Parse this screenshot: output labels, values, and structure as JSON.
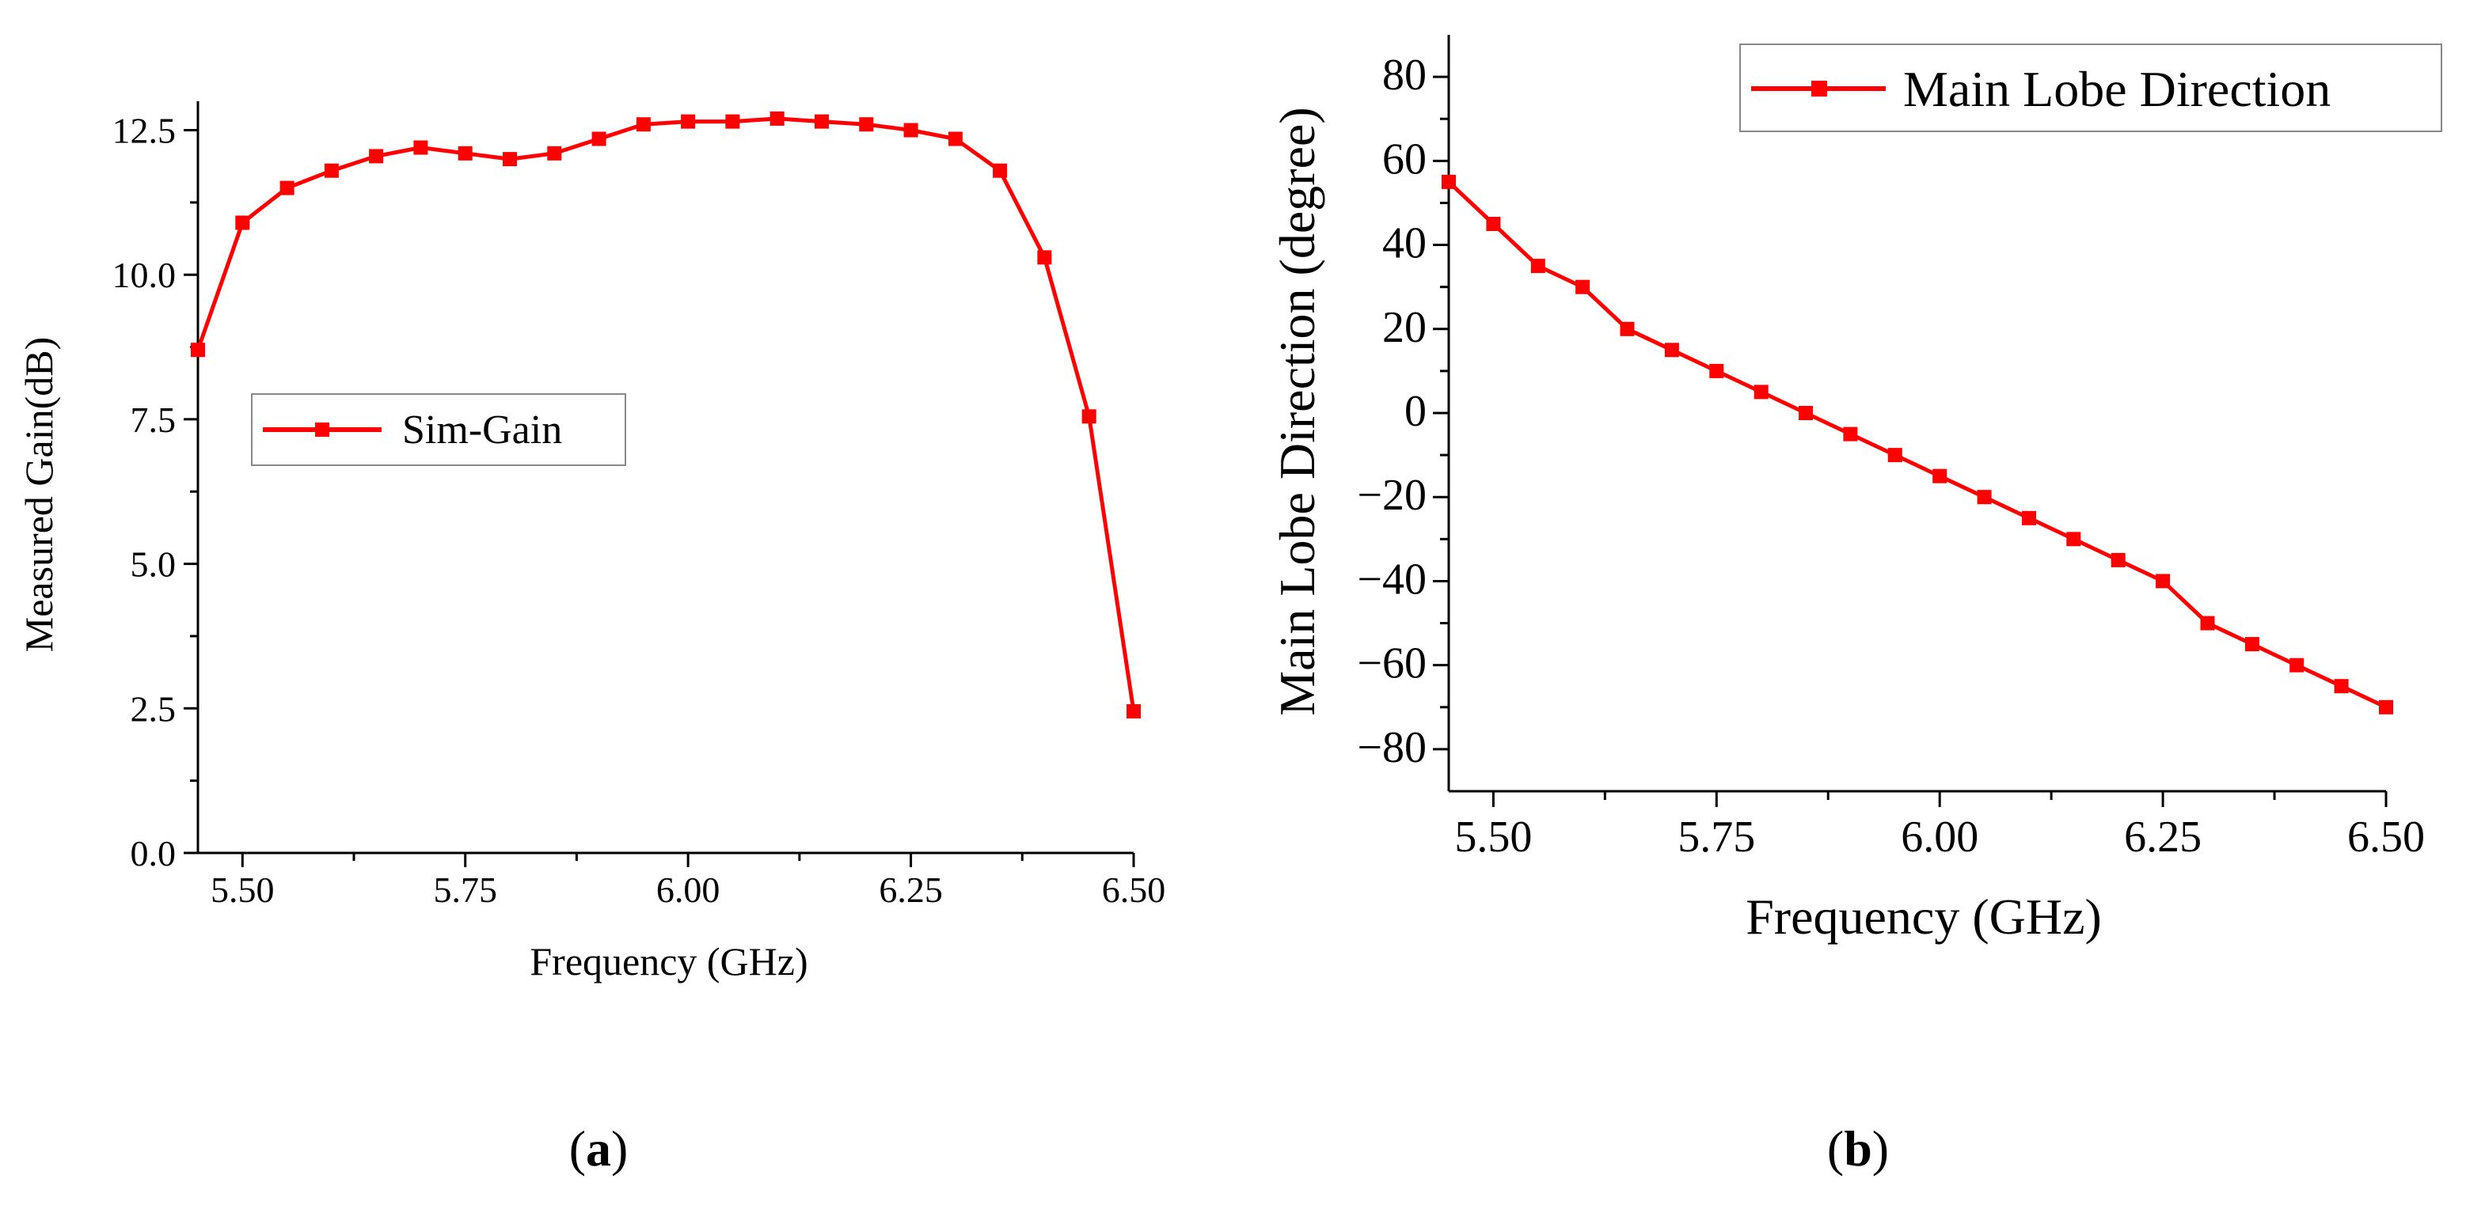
{
  "chart_data": [
    {
      "type": "line",
      "panel": "a",
      "caption": "(a)",
      "caption_letter": "a",
      "title": "",
      "xlabel": "Frequency (GHz)",
      "ylabel": "Measured Gain(dB)",
      "xlim": [
        5.45,
        6.5
      ],
      "ylim": [
        0,
        13
      ],
      "xticks": [
        5.5,
        5.75,
        6.0,
        6.25,
        6.5
      ],
      "xtick_labels": [
        "5.50",
        "5.75",
        "6.00",
        "6.25",
        "6.50"
      ],
      "yticks": [
        0,
        2.5,
        5.0,
        7.5,
        10.0,
        12.5
      ],
      "ytick_labels": [
        "0.0",
        "2.5",
        "5.0",
        "7.5",
        "10.0",
        "12.5"
      ],
      "legend_position": "center-left",
      "color": "#ff0000",
      "series": [
        {
          "name": "Sim-Gain",
          "x": [
            5.45,
            5.5,
            5.55,
            5.6,
            5.65,
            5.7,
            5.75,
            5.8,
            5.85,
            5.9,
            5.95,
            6.0,
            6.05,
            6.1,
            6.15,
            6.2,
            6.25,
            6.3,
            6.35,
            6.4,
            6.45,
            6.5
          ],
          "y": [
            8.7,
            10.9,
            11.5,
            11.8,
            12.05,
            12.2,
            12.1,
            12.0,
            12.1,
            12.35,
            12.6,
            12.65,
            12.65,
            12.7,
            12.65,
            12.6,
            12.5,
            12.35,
            11.8,
            10.3,
            7.55,
            2.45
          ]
        }
      ]
    },
    {
      "type": "line",
      "panel": "b",
      "caption": "(b)",
      "caption_letter": "b",
      "title": "",
      "xlabel": "Frequency (GHz)",
      "ylabel": "Main Lobe Direction (degree)",
      "xlim": [
        5.45,
        6.5
      ],
      "ylim": [
        -90,
        90
      ],
      "xticks": [
        5.5,
        5.75,
        6.0,
        6.25,
        6.5
      ],
      "xtick_labels": [
        "5.50",
        "5.75",
        "6.00",
        "6.25",
        "6.50"
      ],
      "yticks": [
        -80,
        -60,
        -40,
        -20,
        0,
        20,
        40,
        60,
        80
      ],
      "ytick_labels": [
        "−80",
        "−60",
        "−40",
        "−20",
        "0",
        "20",
        "40",
        "60",
        "80"
      ],
      "legend_position": "top-right",
      "color": "#ff0000",
      "series": [
        {
          "name": "Main Lobe Direction",
          "x": [
            5.45,
            5.5,
            5.55,
            5.6,
            5.65,
            5.7,
            5.75,
            5.8,
            5.85,
            5.9,
            5.95,
            6.0,
            6.05,
            6.1,
            6.15,
            6.2,
            6.25,
            6.3,
            6.35,
            6.4,
            6.45,
            6.5
          ],
          "y": [
            55,
            45,
            35,
            30,
            20,
            15,
            10,
            5,
            0,
            -5,
            -10,
            -15,
            -20,
            -25,
            -30,
            -35,
            -40,
            -50,
            -55,
            -60,
            -65,
            -70
          ]
        }
      ]
    }
  ]
}
